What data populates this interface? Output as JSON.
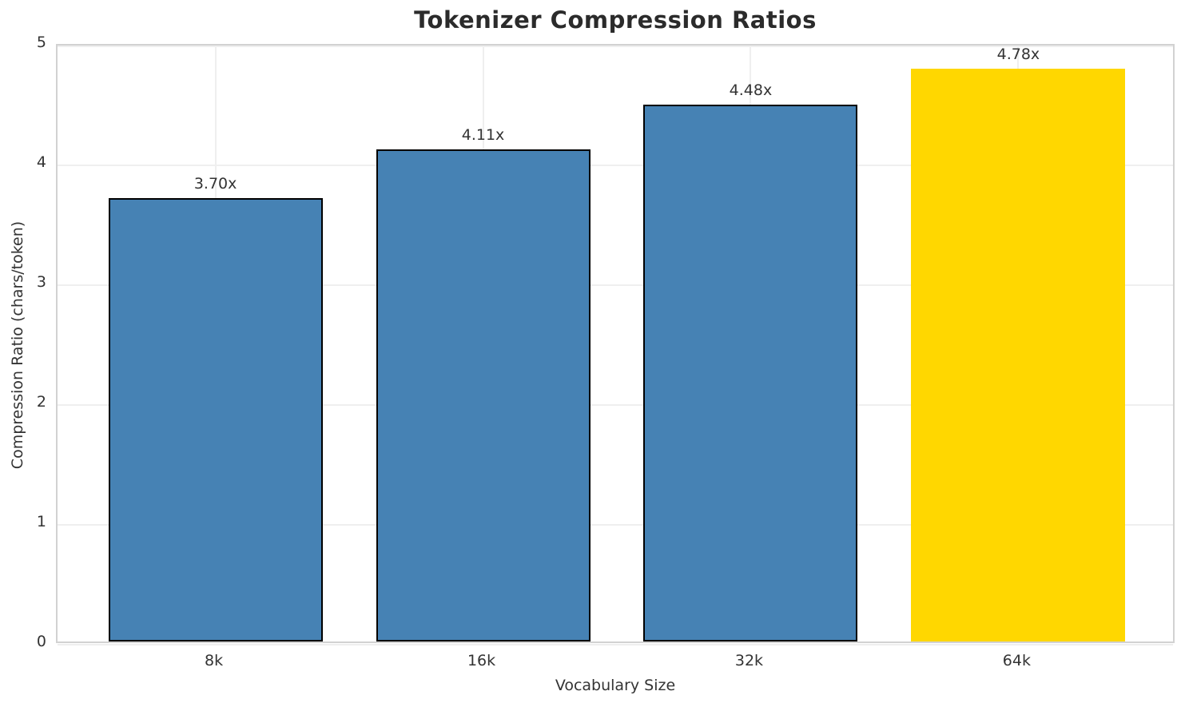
{
  "chart_data": {
    "type": "bar",
    "title": "Tokenizer Compression Ratios",
    "xlabel": "Vocabulary Size",
    "ylabel": "Compression Ratio (chars/token)",
    "categories": [
      "8k",
      "16k",
      "32k",
      "64k"
    ],
    "values": [
      3.7,
      4.11,
      4.48,
      4.78
    ],
    "value_labels": [
      "3.70x",
      "4.11x",
      "4.48x",
      "4.78x"
    ],
    "ylim": [
      0,
      5
    ],
    "yticks": [
      "0",
      "1",
      "2",
      "3",
      "4",
      "5"
    ],
    "grid": "both",
    "legend": "none",
    "bar_width_fraction": 0.8,
    "bar_colors": [
      "#4682B4",
      "#4682B4",
      "#4682B4",
      "#FFD700"
    ],
    "bar_edge_colors": [
      "#000000",
      "#000000",
      "#000000",
      "none"
    ],
    "highlight_index": 3,
    "colors": {
      "bar_default": "#4682B4",
      "bar_highlight": "#FFD700",
      "bar_edge": "#000000",
      "grid": "#efefef",
      "spine": "#d2d2d2",
      "text": "#333333",
      "title_text": "#2b2b2b",
      "background": "#ffffff"
    }
  }
}
